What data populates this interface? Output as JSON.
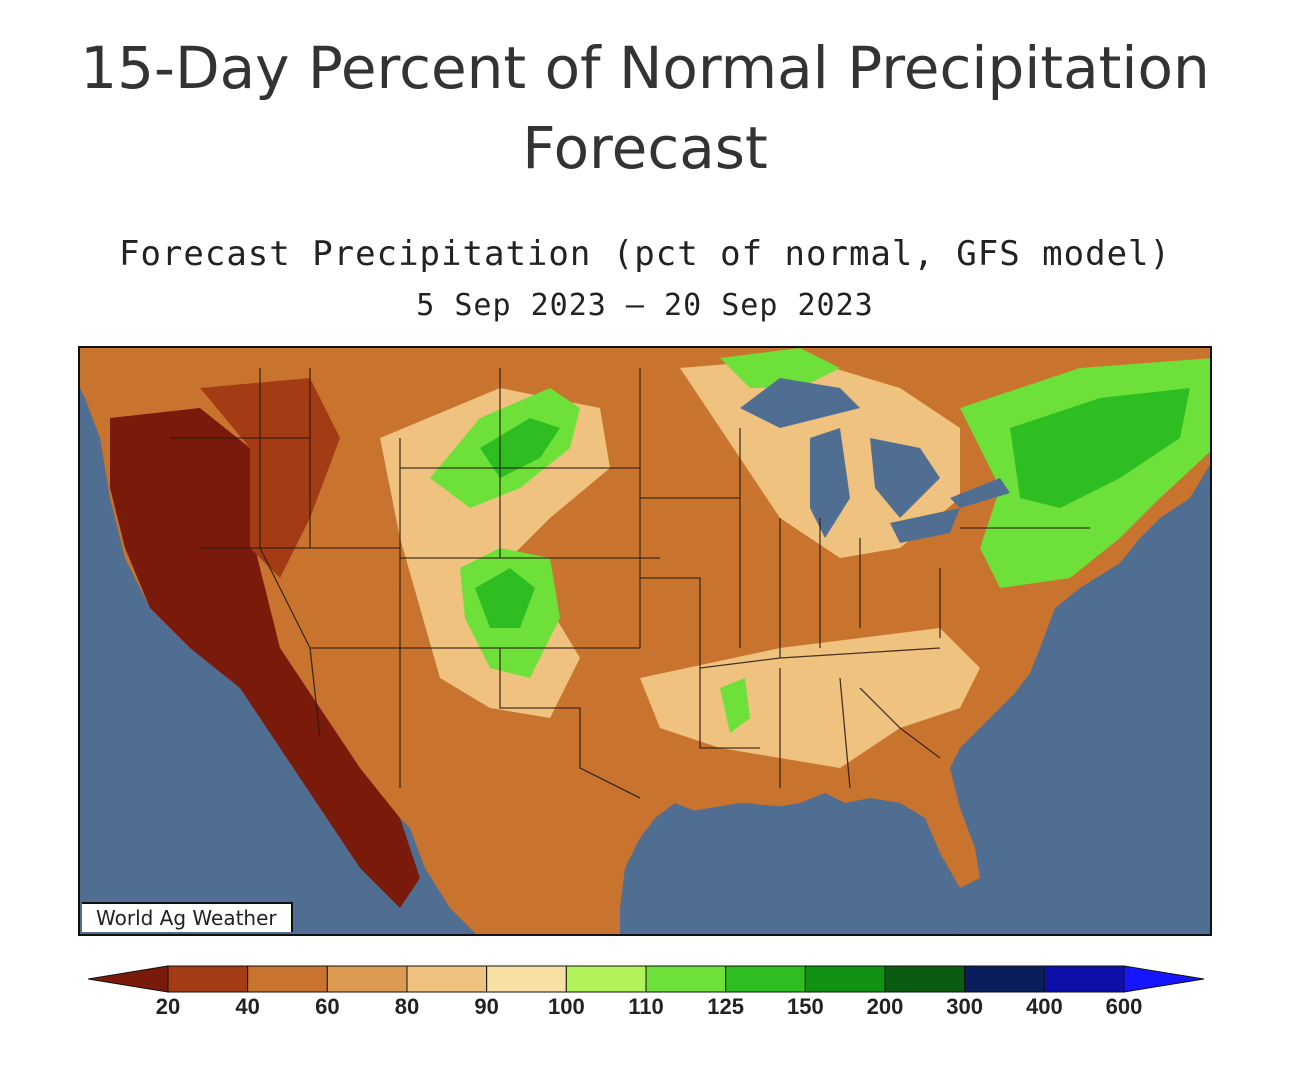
{
  "header": {
    "title_line1": "15-Day Percent of Normal Precipitation",
    "title_line2": "Forecast"
  },
  "map": {
    "title": "Forecast Precipitation (pct of normal, GFS model)",
    "dates": "5 Sep 2023 – 20 Sep 2023",
    "credit": "World Ag Weather",
    "ocean_color": "#4f6e91",
    "land_base_color": "#c8742f"
  },
  "legend": {
    "labels": [
      "20",
      "40",
      "60",
      "80",
      "90",
      "100",
      "110",
      "125",
      "150",
      "200",
      "300",
      "400",
      "600"
    ],
    "colors": [
      "#7a1a0b",
      "#a33c15",
      "#c8742f",
      "#dc9a52",
      "#efc27f",
      "#f8dfa3",
      "#b2f25a",
      "#6ee03a",
      "#2fbe22",
      "#119213",
      "#0a5c10",
      "#0b1e5c",
      "#0e0ea8",
      "#1515ff"
    ]
  }
}
